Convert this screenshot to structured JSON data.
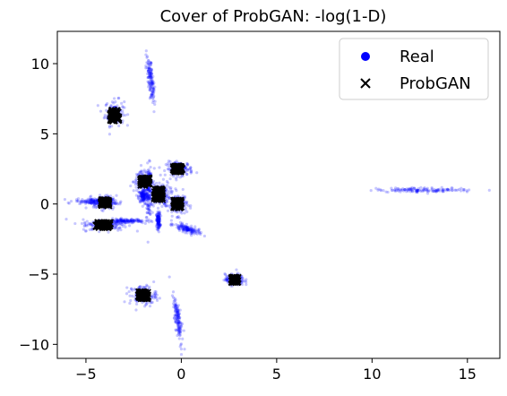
{
  "chart_data": {
    "type": "scatter",
    "title": "Cover of ProbGAN: -log(1-D)",
    "xlabel": "",
    "ylabel": "",
    "xlim": [
      -6.5,
      16.7
    ],
    "ylim": [
      -11.0,
      12.3
    ],
    "xticks": [
      -5,
      0,
      5,
      10,
      15
    ],
    "yticks": [
      -10,
      -5,
      0,
      5,
      10
    ],
    "xtick_labels": [
      "−5",
      "0",
      "5",
      "10",
      "15"
    ],
    "ytick_labels": [
      "−10",
      "−5",
      "0",
      "5",
      "10"
    ],
    "grid": false,
    "legend": "top-right",
    "series": [
      {
        "name": "Real",
        "marker": "dot",
        "color": "#0000ff",
        "clusters": [
          {
            "cx": -1.6,
            "cy": 8.8,
            "sx": 0.08,
            "sy": 0.85,
            "rot": 5
          },
          {
            "cx": -3.5,
            "cy": 6.5,
            "sx": 0.25,
            "sy": 0.45,
            "rot": 0
          },
          {
            "cx": -2.0,
            "cy": 1.6,
            "sx": 0.25,
            "sy": 0.35,
            "rot": 0
          },
          {
            "cx": -1.7,
            "cy": 0.9,
            "sx": 0.08,
            "sy": 0.9,
            "rot": 0
          },
          {
            "cx": -2.0,
            "cy": 0.55,
            "sx": 0.12,
            "sy": 0.25,
            "rot": 0
          },
          {
            "cx": -1.1,
            "cy": 0.7,
            "sx": 0.25,
            "sy": 0.45,
            "rot": 0
          },
          {
            "cx": -1.2,
            "cy": -1.2,
            "sx": 0.05,
            "sy": 0.3,
            "rot": 0
          },
          {
            "cx": -0.1,
            "cy": 2.5,
            "sx": 0.35,
            "sy": 0.25,
            "rot": 0
          },
          {
            "cx": -0.2,
            "cy": 0.0,
            "sx": 0.25,
            "sy": 0.4,
            "rot": 0
          },
          {
            "cx": 0.3,
            "cy": -1.8,
            "sx": 0.35,
            "sy": 0.12,
            "rot": -25
          },
          {
            "cx": -4.6,
            "cy": 0.2,
            "sx": 0.5,
            "sy": 0.1,
            "rot": 0
          },
          {
            "cx": -4.0,
            "cy": 0.1,
            "sx": 0.3,
            "sy": 0.25,
            "rot": 0
          },
          {
            "cx": -4.0,
            "cy": -1.5,
            "sx": 0.6,
            "sy": 0.2,
            "rot": 0
          },
          {
            "cx": -2.9,
            "cy": -1.2,
            "sx": 0.5,
            "sy": 0.08,
            "rot": 0
          },
          {
            "cx": -2.0,
            "cy": -6.5,
            "sx": 0.35,
            "sy": 0.35,
            "rot": 0
          },
          {
            "cx": -0.2,
            "cy": -8.2,
            "sx": 0.08,
            "sy": 0.85,
            "rot": 5
          },
          {
            "cx": 2.8,
            "cy": -5.4,
            "sx": 0.25,
            "sy": 0.2,
            "rot": 0
          },
          {
            "cx": 12.8,
            "cy": 1.0,
            "sx": 1.3,
            "sy": 0.08,
            "rot": 0
          }
        ]
      },
      {
        "name": "ProbGAN",
        "marker": "x",
        "color": "#000000",
        "clusters": [
          {
            "cx": -3.5,
            "cy": 6.3,
            "sx": 0.2,
            "sy": 0.35
          },
          {
            "cx": -1.9,
            "cy": 1.6,
            "sx": 0.2,
            "sy": 0.25
          },
          {
            "cx": -1.2,
            "cy": 0.7,
            "sx": 0.18,
            "sy": 0.35
          },
          {
            "cx": -0.2,
            "cy": 2.5,
            "sx": 0.2,
            "sy": 0.18
          },
          {
            "cx": -0.2,
            "cy": 0.0,
            "sx": 0.18,
            "sy": 0.25
          },
          {
            "cx": -4.0,
            "cy": 0.1,
            "sx": 0.18,
            "sy": 0.18
          },
          {
            "cx": -4.1,
            "cy": -1.5,
            "sx": 0.35,
            "sy": 0.15
          },
          {
            "cx": -2.0,
            "cy": -6.5,
            "sx": 0.22,
            "sy": 0.22
          },
          {
            "cx": 2.8,
            "cy": -5.4,
            "sx": 0.15,
            "sy": 0.15
          }
        ]
      }
    ]
  }
}
